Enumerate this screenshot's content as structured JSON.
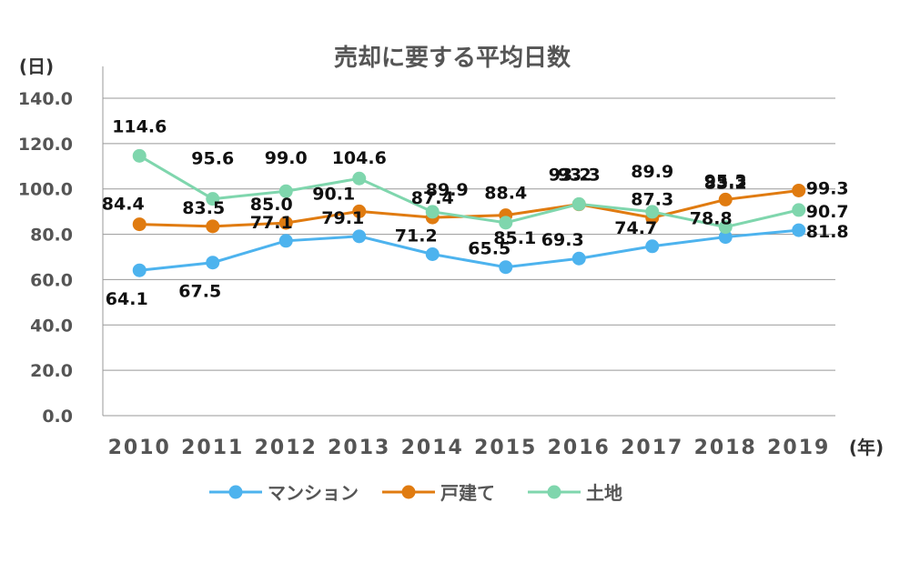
{
  "chart_data": {
    "type": "line",
    "title": "売却に要する平均日数",
    "ylabel": "(日)",
    "xlabel": "(年)",
    "ylim": [
      0,
      140
    ],
    "yticks": [
      "0.0",
      "20.0",
      "40.0",
      "60.0",
      "80.0",
      "100.0",
      "120.0",
      "140.0"
    ],
    "categories": [
      "2010",
      "2011",
      "2012",
      "2013",
      "2014",
      "2015",
      "2016",
      "2017",
      "2018",
      "2019"
    ],
    "grid": true,
    "legend_position": "bottom",
    "series": [
      {
        "name": "マンション",
        "color": "#4db3ee",
        "values": [
          64.1,
          67.5,
          77.1,
          79.1,
          71.2,
          65.5,
          69.3,
          74.7,
          78.8,
          81.8
        ]
      },
      {
        "name": "戸建て",
        "color": "#e07b10",
        "values": [
          84.4,
          83.5,
          85.0,
          90.1,
          87.4,
          88.4,
          93.2,
          87.3,
          95.3,
          99.3
        ]
      },
      {
        "name": "土地",
        "color": "#7fd6ad",
        "values": [
          114.6,
          95.6,
          99.0,
          104.6,
          89.9,
          85.1,
          93.3,
          89.9,
          83.2,
          90.7
        ]
      }
    ]
  }
}
